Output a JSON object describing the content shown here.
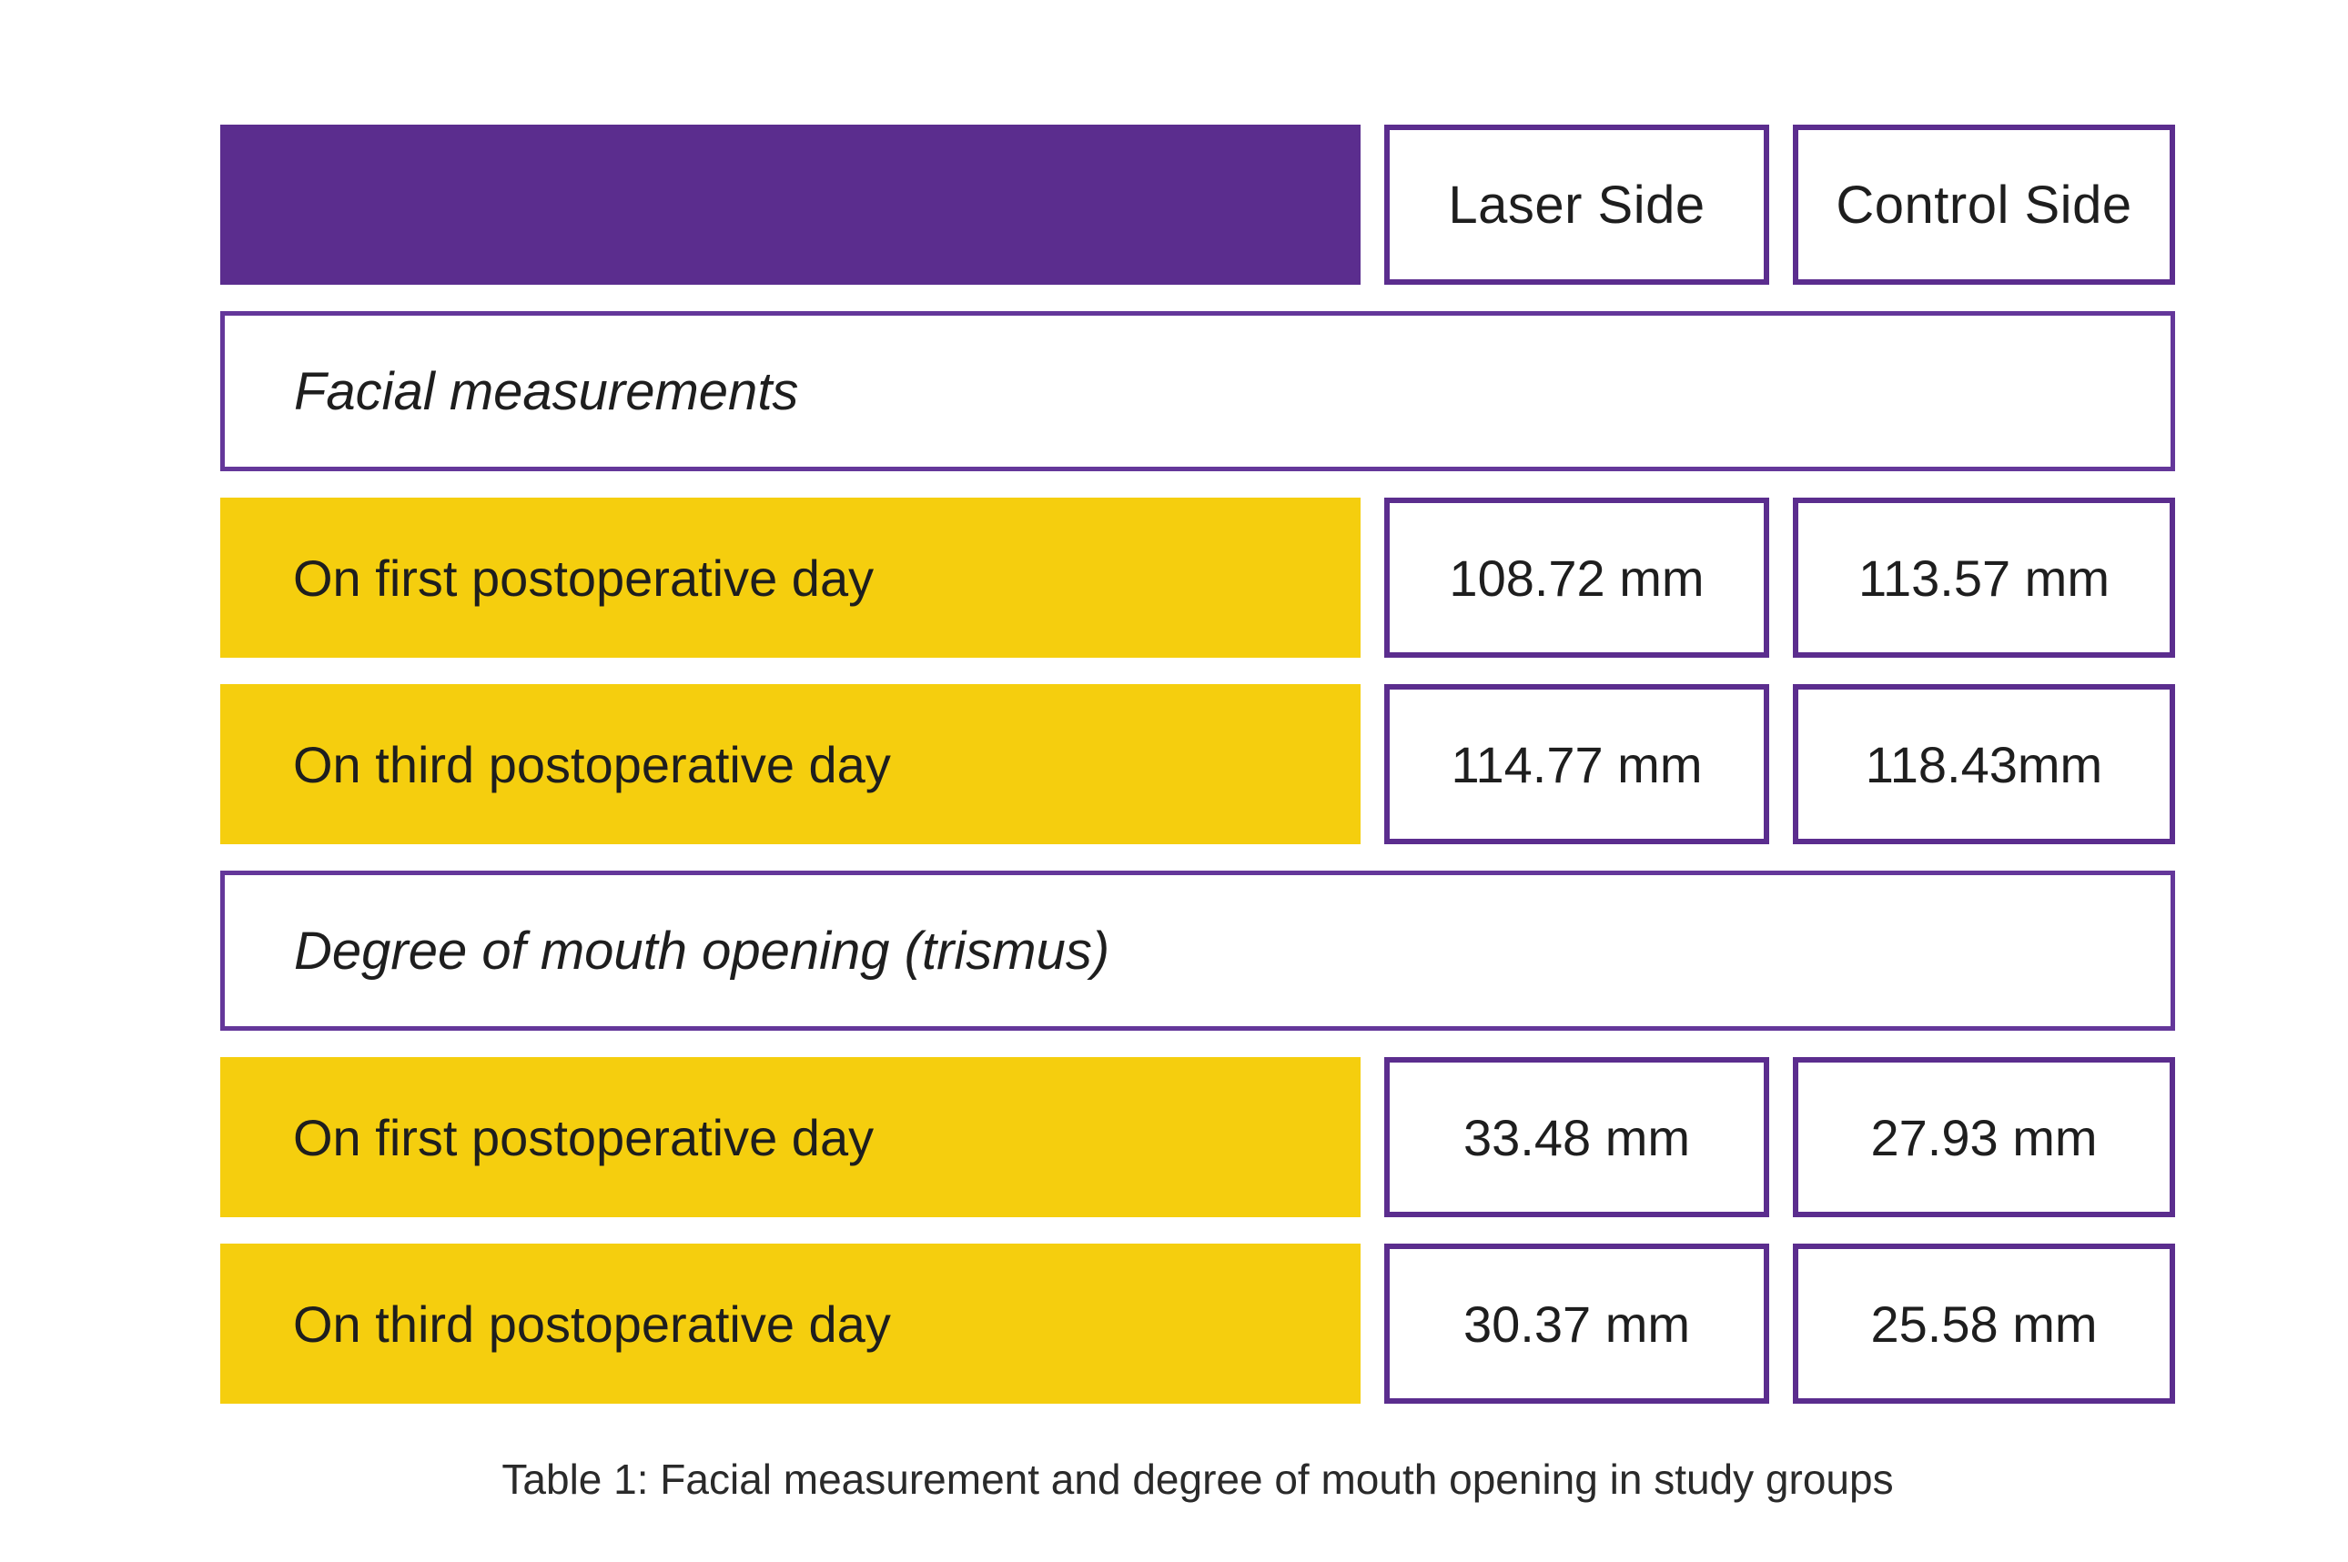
{
  "table": {
    "columns": [
      "Laser Side",
      "Control Side"
    ],
    "sections": [
      {
        "header": "Facial measurements",
        "rows": [
          {
            "label": "On first postoperative day",
            "laser": "108.72 mm",
            "control": "113.57 mm"
          },
          {
            "label": "On third postoperative day",
            "laser": "114.77 mm",
            "control": "118.43mm"
          }
        ]
      },
      {
        "header": "Degree of mouth opening (trismus)",
        "rows": [
          {
            "label": "On first postoperative day",
            "laser": "33.48 mm",
            "control": "27.93 mm"
          },
          {
            "label": "On third postoperative day",
            "laser": "30.37 mm",
            "control": "25.58 mm"
          }
        ]
      }
    ],
    "caption": "Table 1: Facial measurement and degree of mouth opening in study groups"
  },
  "colors": {
    "purple": "#5B2D8E",
    "yellow": "#F5CE0E",
    "text": "#1e1e1e",
    "background": "#ffffff"
  }
}
